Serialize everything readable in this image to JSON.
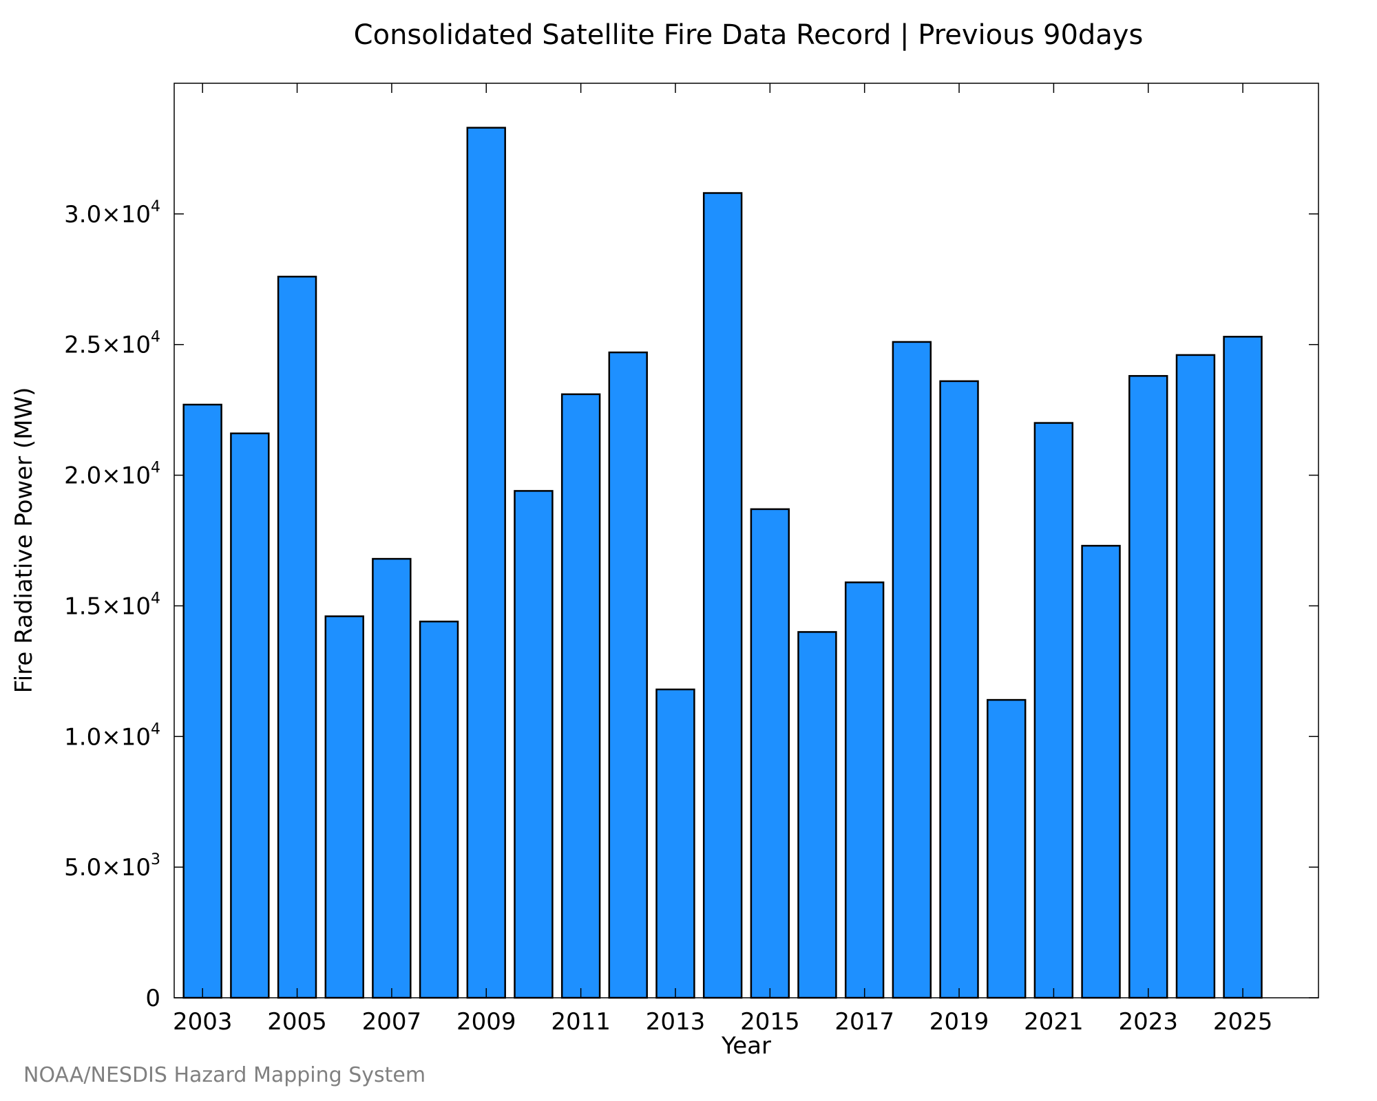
{
  "footer_text": "NOAA/NESDIS Hazard Mapping System",
  "chart_data": {
    "type": "bar",
    "title": "Consolidated Satellite Fire Data Record | Previous 90days",
    "xlabel": "Year",
    "ylabel": "Fire Radiative Power (MW)",
    "categories": [
      "2003",
      "2004",
      "2005",
      "2006",
      "2007",
      "2008",
      "2009",
      "2010",
      "2011",
      "2012",
      "2013",
      "2014",
      "2015",
      "2016",
      "2017",
      "2018",
      "2019",
      "2020",
      "2021",
      "2022",
      "2023",
      "2024",
      "2025"
    ],
    "values": [
      22700,
      21600,
      27600,
      14600,
      16800,
      14400,
      33300,
      19400,
      23100,
      24700,
      11800,
      30800,
      18700,
      14000,
      15900,
      25100,
      23600,
      11400,
      22000,
      17300,
      23800,
      24600,
      25300
    ],
    "ylim": [
      0,
      35000
    ],
    "xlim": [
      2002.4,
      2026.6
    ],
    "x_ticks": [
      "2003",
      "2005",
      "2007",
      "2009",
      "2011",
      "2013",
      "2015",
      "2017",
      "2019",
      "2021",
      "2023",
      "2025"
    ],
    "y_ticks": [
      {
        "value": 0,
        "mantissa": "0",
        "exponent": ""
      },
      {
        "value": 5000,
        "mantissa": "5.0×10",
        "exponent": "3"
      },
      {
        "value": 10000,
        "mantissa": "1.0×10",
        "exponent": "4"
      },
      {
        "value": 15000,
        "mantissa": "1.5×10",
        "exponent": "4"
      },
      {
        "value": 20000,
        "mantissa": "2.0×10",
        "exponent": "4"
      },
      {
        "value": 25000,
        "mantissa": "2.5×10",
        "exponent": "4"
      },
      {
        "value": 30000,
        "mantissa": "3.0×10",
        "exponent": "4"
      }
    ],
    "bar_color": "#1E90FF",
    "bar_edge_color": "#000000",
    "grid": false,
    "legend": "none"
  }
}
